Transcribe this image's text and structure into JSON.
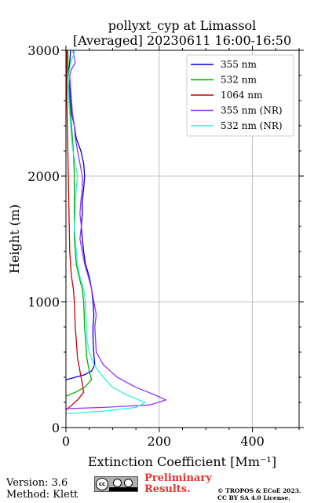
{
  "chart_data": {
    "type": "line",
    "title": "pollyxt_cyp at Limassol",
    "subtitle": "[Averaged] 20230611 16:00-16:50",
    "xlabel": "Extinction Coefficient [Mm⁻¹]",
    "ylabel": "Height (m)",
    "xlim": [
      0,
      500
    ],
    "ylim": [
      0,
      3000
    ],
    "xticks": [
      0,
      200,
      400
    ],
    "yticks": [
      0,
      1000,
      2000,
      3000
    ],
    "grid": true,
    "legend_position": "top-right",
    "series": [
      {
        "name": "355 nm",
        "color": "#0000cc",
        "points": [
          [
            0,
            380
          ],
          [
            20,
            400
          ],
          [
            40,
            420
          ],
          [
            55,
            450
          ],
          [
            62,
            500
          ],
          [
            60,
            580
          ],
          [
            58,
            700
          ],
          [
            58,
            800
          ],
          [
            60,
            900
          ],
          [
            58,
            1000
          ],
          [
            55,
            1100
          ],
          [
            50,
            1200
          ],
          [
            42,
            1300
          ],
          [
            38,
            1400
          ],
          [
            35,
            1500
          ],
          [
            33,
            1600
          ],
          [
            35,
            1700
          ],
          [
            35,
            1800
          ],
          [
            38,
            1900
          ],
          [
            40,
            2000
          ],
          [
            38,
            2100
          ],
          [
            32,
            2200
          ],
          [
            22,
            2300
          ],
          [
            18,
            2400
          ],
          [
            12,
            2500
          ],
          [
            10,
            2600
          ],
          [
            8,
            2700
          ],
          [
            5,
            2800
          ],
          [
            8,
            2900
          ],
          [
            10,
            3000
          ]
        ]
      },
      {
        "name": "532 nm",
        "color": "#00b000",
        "points": [
          [
            0,
            250
          ],
          [
            20,
            280
          ],
          [
            40,
            320
          ],
          [
            55,
            380
          ],
          [
            50,
            450
          ],
          [
            45,
            550
          ],
          [
            42,
            700
          ],
          [
            40,
            800
          ],
          [
            38,
            1000
          ],
          [
            35,
            1100
          ],
          [
            28,
            1200
          ],
          [
            22,
            1300
          ],
          [
            20,
            1400
          ],
          [
            18,
            1500
          ],
          [
            18,
            1600
          ],
          [
            18,
            1800
          ],
          [
            18,
            2000
          ],
          [
            16,
            2200
          ],
          [
            12,
            2400
          ],
          [
            8,
            2600
          ],
          [
            5,
            2800
          ],
          [
            4,
            3000
          ]
        ]
      },
      {
        "name": "1064 nm",
        "color": "#cc0000",
        "points": [
          [
            0,
            140
          ],
          [
            10,
            170
          ],
          [
            25,
            220
          ],
          [
            38,
            280
          ],
          [
            35,
            350
          ],
          [
            30,
            450
          ],
          [
            25,
            550
          ],
          [
            22,
            700
          ],
          [
            20,
            800
          ],
          [
            18,
            1000
          ],
          [
            16,
            1100
          ],
          [
            12,
            1200
          ],
          [
            10,
            1300
          ],
          [
            8,
            1400
          ],
          [
            7,
            1600
          ],
          [
            6,
            1800
          ],
          [
            5,
            2000
          ],
          [
            4,
            2200
          ],
          [
            3,
            2400
          ],
          [
            2,
            2600
          ],
          [
            2,
            3000
          ]
        ]
      },
      {
        "name": "355 nm (NR)",
        "color": "#9933ff",
        "points": [
          [
            0,
            150
          ],
          [
            80,
            160
          ],
          [
            180,
            180
          ],
          [
            215,
            220
          ],
          [
            190,
            260
          ],
          [
            150,
            320
          ],
          [
            110,
            400
          ],
          [
            80,
            500
          ],
          [
            65,
            600
          ],
          [
            62,
            800
          ],
          [
            65,
            900
          ],
          [
            60,
            1000
          ],
          [
            55,
            1100
          ],
          [
            48,
            1200
          ],
          [
            40,
            1300
          ],
          [
            35,
            1400
          ],
          [
            30,
            1500
          ],
          [
            33,
            1600
          ],
          [
            30,
            1700
          ],
          [
            32,
            1800
          ],
          [
            35,
            1900
          ],
          [
            35,
            2000
          ],
          [
            30,
            2100
          ],
          [
            25,
            2200
          ],
          [
            20,
            2300
          ],
          [
            18,
            2400
          ],
          [
            14,
            2500
          ],
          [
            12,
            2600
          ],
          [
            10,
            2700
          ],
          [
            8,
            2800
          ],
          [
            12,
            2850
          ],
          [
            20,
            2900
          ],
          [
            15,
            3000
          ]
        ]
      },
      {
        "name": "532 nm (NR)",
        "color": "#33eedd",
        "points": [
          [
            0,
            110
          ],
          [
            80,
            130
          ],
          [
            150,
            160
          ],
          [
            170,
            200
          ],
          [
            130,
            260
          ],
          [
            100,
            320
          ],
          [
            80,
            400
          ],
          [
            60,
            500
          ],
          [
            50,
            600
          ],
          [
            45,
            700
          ],
          [
            45,
            800
          ],
          [
            42,
            900
          ],
          [
            42,
            1000
          ],
          [
            38,
            1100
          ],
          [
            30,
            1200
          ],
          [
            25,
            1300
          ],
          [
            22,
            1400
          ],
          [
            20,
            1500
          ],
          [
            18,
            1600
          ],
          [
            20,
            1700
          ],
          [
            20,
            1800
          ],
          [
            22,
            1900
          ],
          [
            25,
            2000
          ],
          [
            20,
            2100
          ],
          [
            15,
            2200
          ],
          [
            12,
            2300
          ],
          [
            10,
            2400
          ],
          [
            8,
            2500
          ],
          [
            6,
            2600
          ],
          [
            5,
            2700
          ],
          [
            6,
            2800
          ],
          [
            10,
            2900
          ],
          [
            20,
            3000
          ]
        ]
      }
    ]
  },
  "footer": {
    "version": "Version: 3.6",
    "method": "Method: Klett",
    "preliminary_line1": "Preliminary",
    "preliminary_line2": "Results.",
    "copyright_line1": "© TROPOS & ECoE 2023.",
    "copyright_line2": "CC BY SA 4.0 License.",
    "license_badge": "cc-by-sa-icon"
  }
}
